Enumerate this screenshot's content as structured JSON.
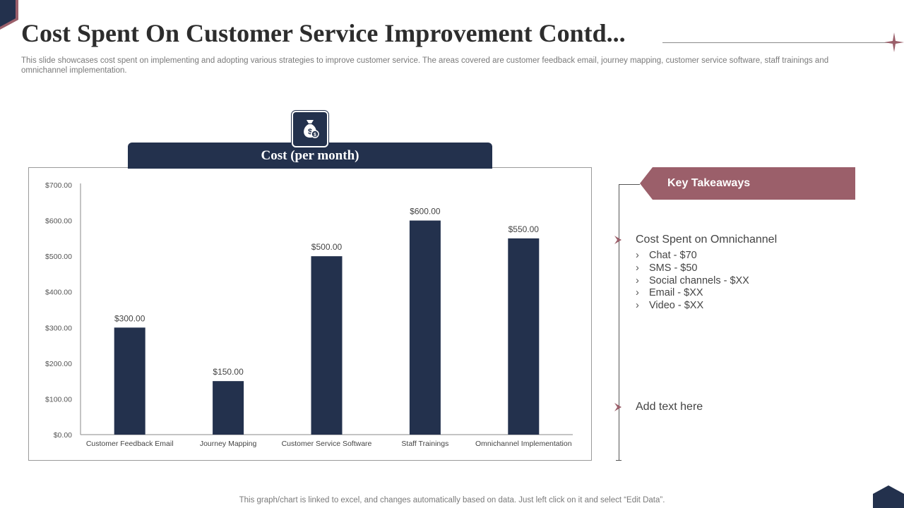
{
  "slide": {
    "title": "Cost Spent On Customer Service Improvement Contd...",
    "subtitle": "This slide showcases cost spent on implementing and adopting various strategies to improve customer service. The areas covered are customer feedback email, journey mapping, customer service software, staff trainings and omnichannel implementation.",
    "footer": "This graph/chart is linked to excel,  and changes automatically based on data. Just left click on it and select “Edit Data”.",
    "icon": "money-bag-icon",
    "colors": {
      "navy": "#23314d",
      "accent": "#9b5f6a",
      "text": "#444444"
    }
  },
  "chart_header": {
    "label": "Cost (per month)"
  },
  "takeaways": {
    "heading": "Key Takeaways",
    "point1": {
      "title": "Cost Spent on Omnichannel",
      "items": [
        "Chat - $70",
        "SMS - $50",
        "Social channels - $XX",
        "Email - $XX",
        "Video  - $XX"
      ]
    },
    "point2": {
      "title": "Add text here"
    }
  },
  "chart_data": {
    "type": "bar",
    "categories": [
      "Customer Feedback Email",
      "Journey Mapping",
      "Customer Service Software",
      "Staff Trainings",
      "Omnichannel Implementation"
    ],
    "values": [
      300,
      150,
      500,
      600,
      550
    ],
    "data_labels": [
      "$300.00",
      "$150.00",
      "$500.00",
      "$600.00",
      "$550.00"
    ],
    "y_ticks": [
      "$0.00",
      "$100.00",
      "$200.00",
      "$300.00",
      "$400.00",
      "$500.00",
      "$600.00",
      "$700.00"
    ],
    "ylim": [
      0,
      700
    ],
    "title": "",
    "xlabel": "",
    "ylabel": "",
    "grid": false,
    "bar_color": "#23314d"
  }
}
